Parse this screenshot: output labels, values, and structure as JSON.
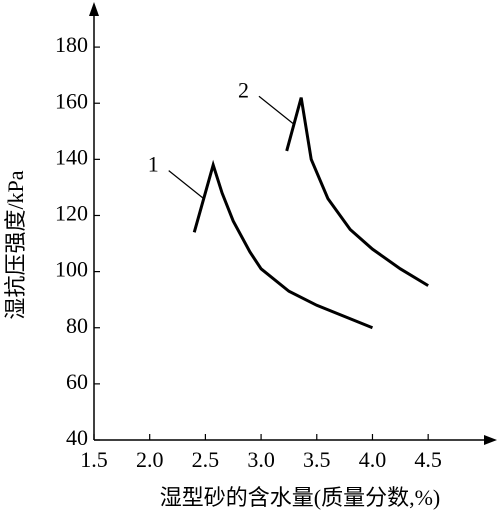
{
  "chart_data": {
    "type": "line",
    "xlabel": "湿型砂的含水量(质量分数,%)",
    "ylabel": "湿抗压强度/kPa",
    "series": [
      {
        "name": "1",
        "color": "#000000",
        "x": [
          2.4,
          2.57,
          2.65,
          2.75,
          2.9,
          3.0,
          3.25,
          3.5,
          3.75,
          4.0
        ],
        "values": [
          114,
          138,
          128,
          118,
          107,
          101,
          93,
          88,
          84,
          80
        ]
      },
      {
        "name": "2",
        "color": "#000000",
        "x": [
          3.23,
          3.36,
          3.45,
          3.6,
          3.8,
          4.0,
          4.25,
          4.5
        ],
        "values": [
          143,
          162,
          140,
          126,
          115,
          108,
          101,
          95
        ]
      }
    ],
    "xlim": [
      1.5,
      5.1
    ],
    "ylim": [
      40,
      195
    ],
    "xticks": [
      1.5,
      {
        "value": 2,
        "label": "2.0"
      },
      2.5,
      {
        "value": 3,
        "label": "3.0"
      },
      3.5,
      {
        "value": 4,
        "label": "4.0"
      },
      4.5
    ],
    "yticks": [
      40,
      60,
      80,
      100,
      120,
      140,
      160,
      180
    ],
    "grid": false
  }
}
